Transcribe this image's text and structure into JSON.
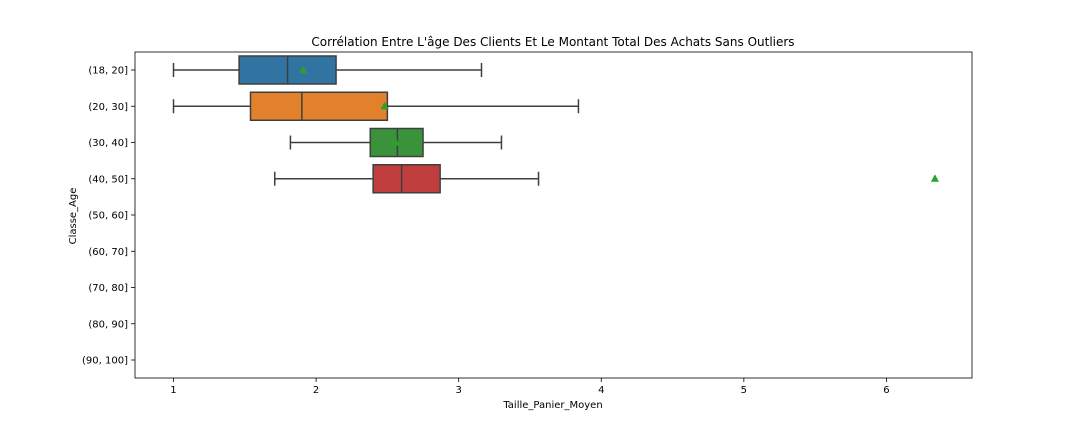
{
  "chart_data": {
    "type": "box",
    "orientation": "horizontal",
    "title": "Corrélation Entre L'âge Des Clients Et Le Montant Total Des Achats Sans Outliers",
    "xlabel": "Taille_Panier_Moyen",
    "ylabel": "Classe_Age",
    "xlim": [
      0.73,
      6.6
    ],
    "xticks": [
      1,
      2,
      3,
      4,
      5,
      6
    ],
    "grid": false,
    "categories": [
      "(18, 20]",
      "(20, 30]",
      "(30, 40]",
      "(40, 50]",
      "(50, 60]",
      "(60, 70]",
      "(70, 80]",
      "(80, 90]",
      "(90, 100]"
    ],
    "boxes": [
      {
        "category": "(18, 20]",
        "whisker_low": 1.0,
        "q1": 1.46,
        "median": 1.8,
        "q3": 2.14,
        "whisker_high": 3.16,
        "mean": 1.91,
        "color": "#3274a1"
      },
      {
        "category": "(20, 30]",
        "whisker_low": 1.0,
        "q1": 1.54,
        "median": 1.9,
        "q3": 2.5,
        "whisker_high": 3.84,
        "mean": 2.48,
        "color": "#e1812c"
      },
      {
        "category": "(30, 40]",
        "whisker_low": 1.82,
        "q1": 2.38,
        "median": 2.57,
        "q3": 2.75,
        "whisker_high": 3.3,
        "mean": 2.56,
        "color": "#3a923a"
      },
      {
        "category": "(40, 50]",
        "whisker_low": 1.71,
        "q1": 2.4,
        "median": 2.6,
        "q3": 2.87,
        "whisker_high": 3.56,
        "mean": 6.34,
        "color": "#c03d3e"
      }
    ],
    "mean_marker_color": "#2ca02c",
    "line_color": "#3f3f3f"
  }
}
